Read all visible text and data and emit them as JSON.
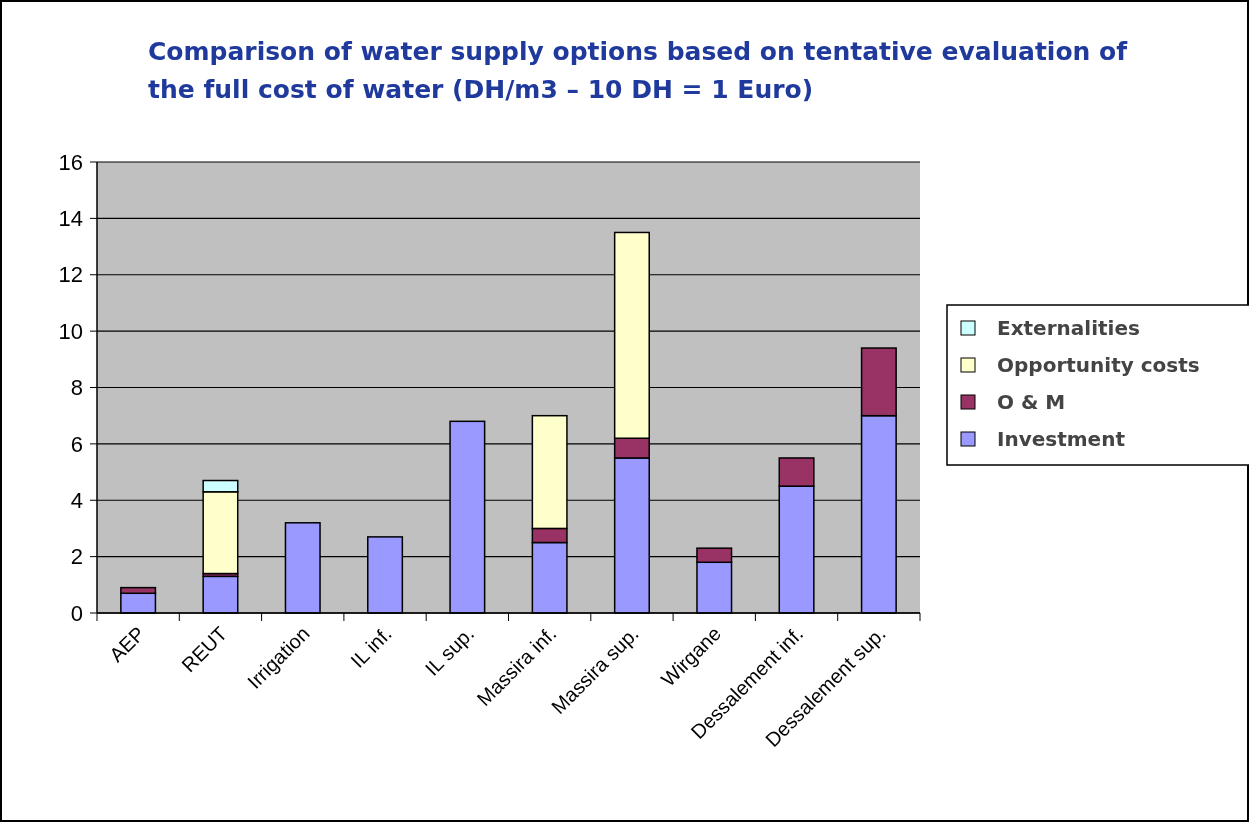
{
  "chart_data": {
    "type": "bar",
    "title": "Comparison of water supply options based on tentative evaluation of the full cost of water (DH/m3 – 10 DH = 1 Euro)",
    "categories": [
      "AEP",
      "REUT",
      "Irrigation",
      "IL inf.",
      "IL sup.",
      "Massira inf.",
      "Massira sup.",
      "Wirgane",
      "Dessalement inf.",
      "Dessalement sup."
    ],
    "stacked": true,
    "ylim": [
      0,
      16
    ],
    "yticks": [
      0,
      2,
      4,
      6,
      8,
      10,
      12,
      14,
      16
    ],
    "grid": "y",
    "legend": "right",
    "series": [
      {
        "name": "Investment",
        "color": "#9999ff",
        "values": [
          0.7,
          1.3,
          3.2,
          2.7,
          6.8,
          2.5,
          5.5,
          1.8,
          4.5,
          7.0
        ]
      },
      {
        "name": "O & M",
        "color": "#993366",
        "values": [
          0.2,
          0.1,
          null,
          null,
          null,
          0.5,
          0.7,
          0.5,
          1.0,
          2.4
        ]
      },
      {
        "name": "Opportunity costs",
        "color": "#ffffcc",
        "values": [
          null,
          2.9,
          null,
          null,
          null,
          4.0,
          7.3,
          null,
          null,
          null
        ]
      },
      {
        "name": "Externalities",
        "color": "#ccffff",
        "values": [
          null,
          0.4,
          null,
          null,
          null,
          null,
          null,
          null,
          null,
          null
        ]
      }
    ]
  }
}
